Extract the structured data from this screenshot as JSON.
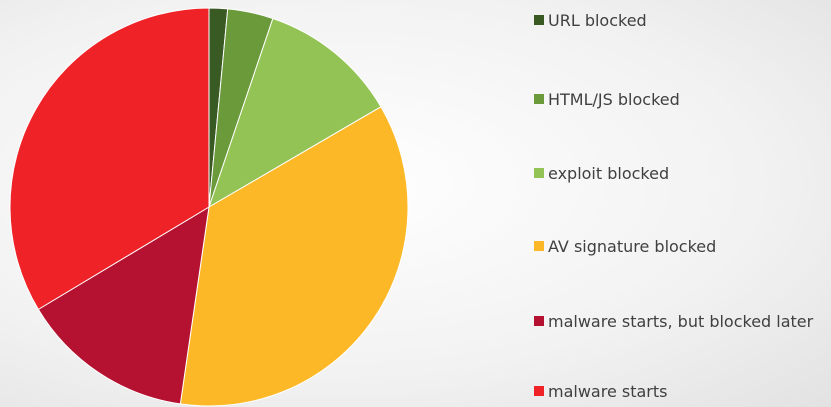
{
  "chart_data": {
    "type": "pie",
    "categories": [
      "URL blocked",
      "HTML/JS blocked",
      "exploit blocked",
      "AV signature blocked",
      "malware starts, but blocked later",
      "malware starts"
    ],
    "values": [
      1.5,
      3.7,
      11.4,
      35.7,
      14.1,
      33.6
    ],
    "colors": [
      "#3a5a24",
      "#6a9a3a",
      "#94c355",
      "#fdb827",
      "#b51232",
      "#ee2227"
    ],
    "legend": "right"
  }
}
